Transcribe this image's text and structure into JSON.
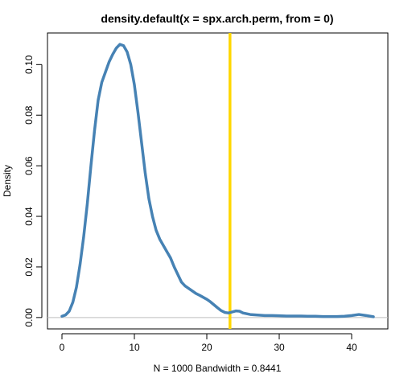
{
  "chart_data": {
    "type": "line",
    "title": "density.default(x = spx.arch.perm, from = 0)",
    "xlabel": "N = 1000   Bandwidth = 0.8441",
    "ylabel": "Density",
    "xlim": [
      -2,
      45
    ],
    "ylim": [
      -0.0045,
      0.1125
    ],
    "x_ticks": [
      0,
      10,
      20,
      30,
      40
    ],
    "y_ticks": [
      0.0,
      0.02,
      0.04,
      0.06,
      0.08,
      0.1
    ],
    "x_tick_labels": [
      "0",
      "10",
      "20",
      "30",
      "40"
    ],
    "y_tick_labels": [
      "0.00",
      "0.02",
      "0.04",
      "0.06",
      "0.08",
      "0.10"
    ],
    "grid": false,
    "reference_line": {
      "x": 23.2,
      "color": "#FFD700"
    },
    "baseline": {
      "y": 0,
      "color": "#BEBEBE"
    },
    "series": [
      {
        "color": "#4682B4",
        "x": [
          0,
          0.5,
          1,
          1.5,
          2,
          2.5,
          3,
          3.5,
          4,
          4.5,
          5,
          5.5,
          6,
          6.5,
          7,
          7.5,
          8,
          8.5,
          9,
          9.5,
          10,
          10.5,
          11,
          11.5,
          12,
          12.5,
          13,
          13.5,
          14,
          14.5,
          15,
          15.5,
          16,
          16.5,
          17,
          17.5,
          18,
          18.5,
          19,
          19.5,
          20,
          20.5,
          21,
          21.5,
          22,
          22.5,
          23,
          23.5,
          24,
          24.5,
          25,
          26,
          27,
          28,
          29,
          30,
          31,
          32,
          33,
          34,
          35,
          36,
          37,
          38,
          39,
          40,
          41,
          42,
          43
        ],
        "y": [
          0.0005,
          0.001,
          0.0025,
          0.006,
          0.012,
          0.021,
          0.032,
          0.045,
          0.06,
          0.074,
          0.086,
          0.093,
          0.097,
          0.101,
          0.104,
          0.1065,
          0.108,
          0.1075,
          0.105,
          0.1,
          0.092,
          0.081,
          0.069,
          0.057,
          0.047,
          0.04,
          0.0345,
          0.031,
          0.0285,
          0.026,
          0.0235,
          0.02,
          0.017,
          0.014,
          0.0125,
          0.0115,
          0.0105,
          0.0095,
          0.0088,
          0.008,
          0.0072,
          0.0062,
          0.005,
          0.0038,
          0.0027,
          0.002,
          0.0018,
          0.0022,
          0.0026,
          0.0025,
          0.0018,
          0.0012,
          0.001,
          0.0008,
          0.0008,
          0.0007,
          0.0006,
          0.0006,
          0.0006,
          0.0005,
          0.0005,
          0.0004,
          0.0004,
          0.0004,
          0.0005,
          0.0008,
          0.0012,
          0.0008,
          0.0003
        ]
      }
    ]
  }
}
